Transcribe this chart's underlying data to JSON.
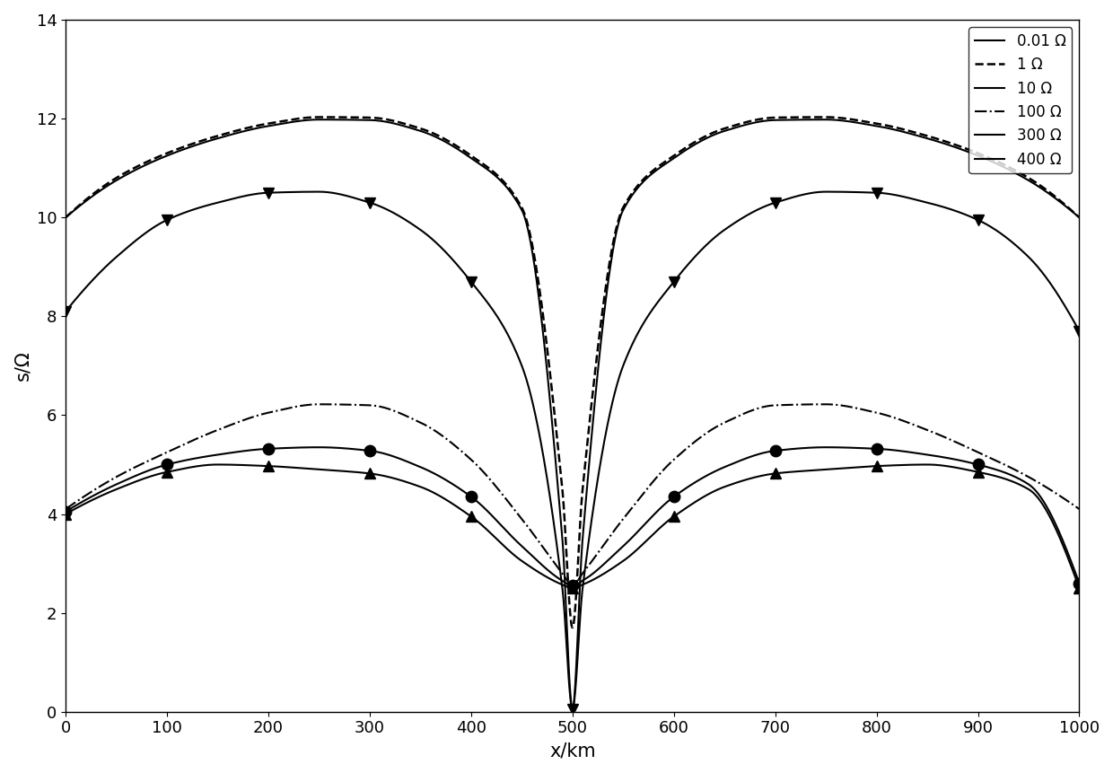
{
  "title": "",
  "xlabel": "x/km",
  "ylabel": "s/Ω",
  "xlim": [
    0,
    1000
  ],
  "ylim": [
    0,
    14
  ],
  "xticks": [
    0,
    100,
    200,
    300,
    400,
    500,
    600,
    700,
    800,
    900,
    1000
  ],
  "yticks": [
    0,
    2,
    4,
    6,
    8,
    10,
    12,
    14
  ],
  "series": [
    {
      "label": "0.01 Ω",
      "linestyle": "-",
      "color": "black",
      "linewidth": 1.5,
      "marker": null,
      "knot_x": [
        0,
        50,
        100,
        150,
        200,
        250,
        300,
        350,
        400,
        450,
        490,
        500,
        510,
        550,
        600,
        650,
        700,
        750,
        800,
        850,
        900,
        950,
        1000
      ],
      "knot_y": [
        10.0,
        10.75,
        11.25,
        11.6,
        11.85,
        11.98,
        11.97,
        11.75,
        11.2,
        10.15,
        3.5,
        0.05,
        3.5,
        10.15,
        11.2,
        11.75,
        11.97,
        11.98,
        11.85,
        11.6,
        11.25,
        10.75,
        10.0
      ]
    },
    {
      "label": "1 Ω",
      "linestyle": "--",
      "color": "black",
      "linewidth": 1.8,
      "marker": null,
      "knot_x": [
        0,
        50,
        100,
        150,
        200,
        250,
        300,
        350,
        400,
        450,
        490,
        500,
        510,
        550,
        600,
        650,
        700,
        750,
        800,
        850,
        900,
        950,
        1000
      ],
      "knot_y": [
        10.0,
        10.8,
        11.3,
        11.65,
        11.9,
        12.03,
        12.02,
        11.8,
        11.25,
        10.2,
        4.5,
        1.7,
        4.5,
        10.2,
        11.25,
        11.8,
        12.02,
        12.03,
        11.9,
        11.65,
        11.3,
        10.8,
        10.0
      ]
    },
    {
      "label": "10 Ω",
      "linestyle": "-",
      "color": "black",
      "linewidth": 1.5,
      "marker": "v",
      "markersize": 9,
      "markerfacecolor": "black",
      "marker_x": [
        0,
        100,
        200,
        300,
        400,
        500,
        600,
        700,
        800,
        900,
        1000
      ],
      "knot_x": [
        0,
        50,
        100,
        150,
        200,
        250,
        300,
        350,
        400,
        450,
        490,
        500,
        510,
        550,
        600,
        650,
        700,
        750,
        800,
        850,
        900,
        950,
        1000
      ],
      "knot_y": [
        8.1,
        9.2,
        9.95,
        10.3,
        10.5,
        10.52,
        10.3,
        9.75,
        8.7,
        7.0,
        2.5,
        0.05,
        2.5,
        7.0,
        8.7,
        9.75,
        10.3,
        10.52,
        10.5,
        10.3,
        9.95,
        9.2,
        7.7
      ]
    },
    {
      "label": "100 Ω",
      "linestyle": "-.",
      "color": "black",
      "linewidth": 1.5,
      "marker": null,
      "knot_x": [
        0,
        50,
        100,
        150,
        200,
        250,
        300,
        350,
        400,
        450,
        490,
        500,
        510,
        550,
        600,
        650,
        700,
        750,
        800,
        850,
        900,
        950,
        1000
      ],
      "knot_y": [
        4.1,
        4.75,
        5.25,
        5.7,
        6.05,
        6.22,
        6.2,
        5.85,
        5.1,
        3.9,
        2.8,
        2.55,
        2.8,
        3.9,
        5.1,
        5.85,
        6.2,
        6.22,
        6.05,
        5.7,
        5.25,
        4.75,
        4.1
      ]
    },
    {
      "label": "300 Ω",
      "linestyle": "-",
      "color": "black",
      "linewidth": 1.5,
      "marker": "o",
      "markersize": 9,
      "markerfacecolor": "black",
      "marker_x": [
        0,
        100,
        200,
        300,
        400,
        500,
        600,
        700,
        800,
        900,
        1000
      ],
      "knot_x": [
        0,
        50,
        100,
        150,
        200,
        250,
        300,
        350,
        400,
        450,
        490,
        500,
        510,
        550,
        600,
        650,
        700,
        750,
        800,
        850,
        900,
        950,
        1000
      ],
      "knot_y": [
        4.05,
        4.6,
        5.0,
        5.2,
        5.32,
        5.35,
        5.28,
        4.95,
        4.35,
        3.35,
        2.65,
        2.55,
        2.65,
        3.35,
        4.35,
        4.95,
        5.28,
        5.35,
        5.32,
        5.2,
        5.0,
        4.6,
        2.6
      ]
    },
    {
      "label": "400 Ω",
      "linestyle": "-",
      "color": "black",
      "linewidth": 1.5,
      "marker": "^",
      "markersize": 9,
      "markerfacecolor": "black",
      "marker_x": [
        0,
        100,
        200,
        300,
        400,
        500,
        600,
        700,
        800,
        900,
        1000
      ],
      "knot_x": [
        0,
        50,
        100,
        150,
        200,
        250,
        300,
        350,
        400,
        450,
        490,
        500,
        510,
        550,
        600,
        650,
        700,
        750,
        800,
        850,
        900,
        950,
        1000
      ],
      "knot_y": [
        4.0,
        4.5,
        4.85,
        5.0,
        4.97,
        4.9,
        4.82,
        4.55,
        3.95,
        3.05,
        2.57,
        2.5,
        2.57,
        3.05,
        3.95,
        4.55,
        4.82,
        4.9,
        4.97,
        5.0,
        4.85,
        4.5,
        2.5
      ]
    }
  ],
  "legend_loc": "upper right",
  "legend_fontsize": 12,
  "tick_fontsize": 13,
  "label_fontsize": 15,
  "background_color": "white"
}
